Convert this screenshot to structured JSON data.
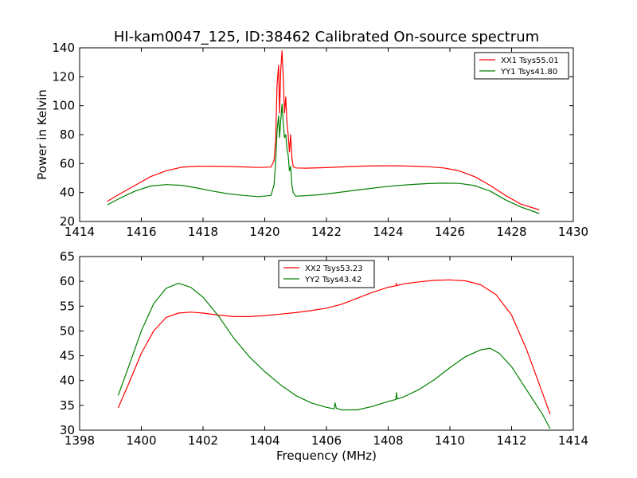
{
  "figure": {
    "title": "HI-kam0047_125, ID:38462 Calibrated On-source spectrum",
    "xlabel": "Frequency (MHz)"
  },
  "chart_data": [
    {
      "type": "line",
      "title": "HI-kam0047_125, ID:38462 Calibrated On-source spectrum",
      "xlabel": "",
      "ylabel": "Power in Kelvin",
      "xlim": [
        1414,
        1430
      ],
      "ylim": [
        20,
        140
      ],
      "xticks": [
        1414,
        1416,
        1418,
        1420,
        1422,
        1424,
        1426,
        1428,
        1430
      ],
      "yticks": [
        20,
        40,
        60,
        80,
        100,
        120,
        140
      ],
      "legend_position": "top-right",
      "grid": false,
      "series": [
        {
          "name": "XX1 Tsys55.01",
          "color": "#ff0000",
          "x": [
            1414.9,
            1415.3,
            1415.8,
            1416.3,
            1416.8,
            1417.3,
            1417.8,
            1418.3,
            1418.8,
            1419.3,
            1419.8,
            1420.2,
            1420.3,
            1420.35,
            1420.4,
            1420.45,
            1420.48,
            1420.52,
            1420.56,
            1420.6,
            1420.64,
            1420.68,
            1420.72,
            1420.76,
            1420.8,
            1420.84,
            1420.88,
            1420.92,
            1421.0,
            1421.3,
            1421.8,
            1422.3,
            1422.8,
            1423.3,
            1423.8,
            1424.3,
            1424.8,
            1425.3,
            1425.8,
            1426.3,
            1426.8,
            1427.3,
            1427.8,
            1428.3,
            1428.9
          ],
          "y": [
            34,
            39,
            45,
            51,
            55,
            57.5,
            58.2,
            58.2,
            58,
            57.7,
            57.3,
            57.6,
            62,
            75,
            115,
            128,
            95,
            125,
            138,
            120,
            95,
            106,
            88,
            80,
            68,
            80,
            64,
            58,
            57,
            56.8,
            57.1,
            57.5,
            58,
            58.3,
            58.5,
            58.5,
            58.2,
            57.8,
            57,
            55,
            51,
            45,
            38,
            32,
            28
          ]
        },
        {
          "name": "YY1 Tsys41.80",
          "color": "#008000",
          "x": [
            1414.9,
            1415.3,
            1415.8,
            1416.3,
            1416.8,
            1417.3,
            1417.8,
            1418.3,
            1418.8,
            1419.3,
            1419.8,
            1420.2,
            1420.3,
            1420.35,
            1420.4,
            1420.45,
            1420.48,
            1420.52,
            1420.56,
            1420.6,
            1420.64,
            1420.68,
            1420.72,
            1420.76,
            1420.8,
            1420.84,
            1420.88,
            1420.92,
            1421.0,
            1421.3,
            1421.8,
            1422.3,
            1422.8,
            1423.3,
            1423.8,
            1424.3,
            1424.8,
            1425.3,
            1425.8,
            1426.3,
            1426.8,
            1427.3,
            1427.8,
            1428.3,
            1428.9
          ],
          "y": [
            31.5,
            36,
            41,
            44.5,
            45.5,
            45,
            43.2,
            41,
            39.2,
            38,
            37.2,
            38,
            45,
            60,
            83,
            93,
            78,
            90,
            101,
            88,
            78,
            80,
            70,
            66,
            55,
            58,
            45,
            40,
            37.5,
            37.8,
            38.5,
            39.8,
            41.2,
            42.5,
            43.8,
            44.8,
            45.6,
            46.2,
            46.5,
            46.3,
            44.8,
            41,
            35,
            30,
            25.5
          ]
        }
      ]
    },
    {
      "type": "line",
      "title": "",
      "xlabel": "Frequency (MHz)",
      "ylabel": "",
      "xlim": [
        1398,
        1414
      ],
      "ylim": [
        30,
        65
      ],
      "xticks": [
        1398,
        1400,
        1402,
        1404,
        1406,
        1408,
        1410,
        1412,
        1414
      ],
      "yticks": [
        30,
        35,
        40,
        45,
        50,
        55,
        60,
        65
      ],
      "legend_position": "top-center",
      "grid": false,
      "series": [
        {
          "name": "XX2 Tsys53.23",
          "color": "#ff0000",
          "x": [
            1399.25,
            1399.6,
            1400.0,
            1400.4,
            1400.8,
            1401.2,
            1401.6,
            1402.0,
            1402.5,
            1403.0,
            1403.5,
            1404.0,
            1404.5,
            1405.0,
            1405.5,
            1406.0,
            1406.5,
            1407.0,
            1407.5,
            1408.0,
            1408.25,
            1408.26,
            1408.28,
            1408.5,
            1409.0,
            1409.5,
            1410.0,
            1410.5,
            1411.0,
            1411.5,
            1412.0,
            1412.5,
            1413.0,
            1413.25
          ],
          "y": [
            34.5,
            39.5,
            45.5,
            50,
            52.7,
            53.6,
            53.8,
            53.6,
            53.2,
            52.9,
            52.9,
            53.1,
            53.4,
            53.7,
            54.1,
            54.6,
            55.4,
            56.6,
            57.8,
            58.8,
            59.1,
            59.6,
            59.1,
            59.5,
            59.9,
            60.2,
            60.3,
            60.1,
            59.3,
            57.3,
            53.2,
            46.0,
            37.5,
            33.2
          ]
        },
        {
          "name": "YY2 Tsys43.42",
          "color": "#008000",
          "x": [
            1399.25,
            1399.6,
            1400.0,
            1400.4,
            1400.8,
            1401.2,
            1401.6,
            1402.0,
            1402.5,
            1403.0,
            1403.5,
            1404.0,
            1404.5,
            1405.0,
            1405.5,
            1406.0,
            1406.25,
            1406.28,
            1406.32,
            1406.5,
            1407.0,
            1407.5,
            1408.0,
            1408.25,
            1408.27,
            1408.29,
            1408.5,
            1409.0,
            1409.5,
            1410.0,
            1410.5,
            1411.0,
            1411.3,
            1411.6,
            1412.0,
            1412.5,
            1413.0,
            1413.25
          ],
          "y": [
            37,
            43,
            50,
            55.5,
            58.6,
            59.6,
            58.8,
            56.8,
            53,
            48.5,
            44.8,
            41.8,
            39.2,
            37.0,
            35.5,
            34.6,
            34.3,
            35.5,
            34.4,
            34.1,
            34.1,
            34.8,
            35.8,
            36.2,
            37.6,
            36.3,
            36.7,
            38.2,
            40.2,
            42.6,
            44.8,
            46.2,
            46.5,
            45.5,
            42.8,
            38.0,
            33.2,
            30.3
          ]
        }
      ]
    }
  ]
}
